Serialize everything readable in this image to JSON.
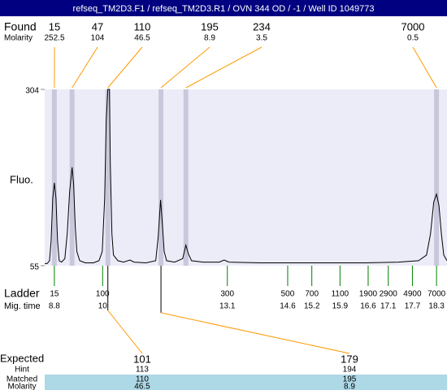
{
  "chart_data": {
    "type": "electropherogram",
    "title": "refseq_TM2D3.F1 / refseq_TM2D3.R1 / OVN 344 OD / -1 / Well ID 1049773",
    "y_label": "Fluo.",
    "ylim": [
      55,
      304
    ],
    "yticks": [
      55,
      304
    ],
    "xlim": [
      8.56,
      18.56
    ],
    "background": "#ececf8",
    "trace": {
      "color": "#000000",
      "x": [
        8.56,
        8.62,
        8.68,
        8.72,
        8.76,
        8.8,
        8.84,
        8.88,
        8.92,
        8.98,
        9.06,
        9.12,
        9.18,
        9.24,
        9.28,
        9.32,
        9.36,
        9.43,
        9.57,
        9.77,
        9.91,
        9.99,
        10.05,
        10.09,
        10.13,
        10.17,
        10.19,
        10.23,
        10.27,
        10.38,
        10.52,
        10.68,
        10.78,
        11.08,
        11.32,
        11.38,
        11.44,
        11.49,
        11.53,
        11.59,
        11.79,
        11.99,
        12.07,
        12.13,
        12.21,
        12.5,
        12.9,
        13.02,
        13.14,
        13.91,
        14.72,
        15.53,
        16.54,
        17.35,
        17.85,
        18.05,
        18.15,
        18.23,
        18.3,
        18.36,
        18.42,
        18.48,
        18.56
      ],
      "values": [
        58,
        58,
        62,
        90,
        150,
        172,
        150,
        90,
        62,
        60,
        65,
        100,
        160,
        194,
        170,
        110,
        75,
        62,
        59,
        59,
        62,
        75,
        150,
        260,
        304,
        304,
        200,
        100,
        70,
        62,
        60,
        63,
        60,
        59,
        62,
        95,
        148,
        110,
        75,
        62,
        60,
        65,
        84,
        72,
        62,
        60,
        60,
        63,
        60,
        59,
        59,
        59,
        59,
        60,
        62,
        70,
        100,
        145,
        156,
        140,
        100,
        70,
        62
      ]
    },
    "found": {
      "label": "Found",
      "sizes": [
        15,
        47,
        110,
        195,
        234,
        7000
      ],
      "molarity_label": "Molarity",
      "molarity": [
        252.5,
        104,
        46.5,
        8.9,
        3.5,
        0.5
      ],
      "x": [
        8.8,
        9.24,
        10.13,
        11.45,
        12.07,
        18.3
      ],
      "band_color": "#c8c8dc",
      "line_color": "#ff9900"
    },
    "ladder": {
      "label": "Ladder",
      "time_label": "Mig. time",
      "sizes": [
        15,
        100,
        300,
        500,
        700,
        1100,
        1900,
        2900,
        4900,
        7000
      ],
      "x": [
        8.8,
        10,
        13.1,
        14.6,
        15.2,
        15.9,
        16.6,
        17.1,
        17.7,
        18.3
      ],
      "color": "#008000"
    },
    "expected": {
      "label": "Expected",
      "values": [
        101,
        179
      ],
      "hint_label": "Hint",
      "hint": [
        113,
        194
      ],
      "matched_label": "Matched",
      "matched": [
        110,
        195
      ],
      "molarity_label": "Molarity",
      "molarity": [
        46.5,
        8.9
      ],
      "highlight": "#add8e6"
    }
  }
}
